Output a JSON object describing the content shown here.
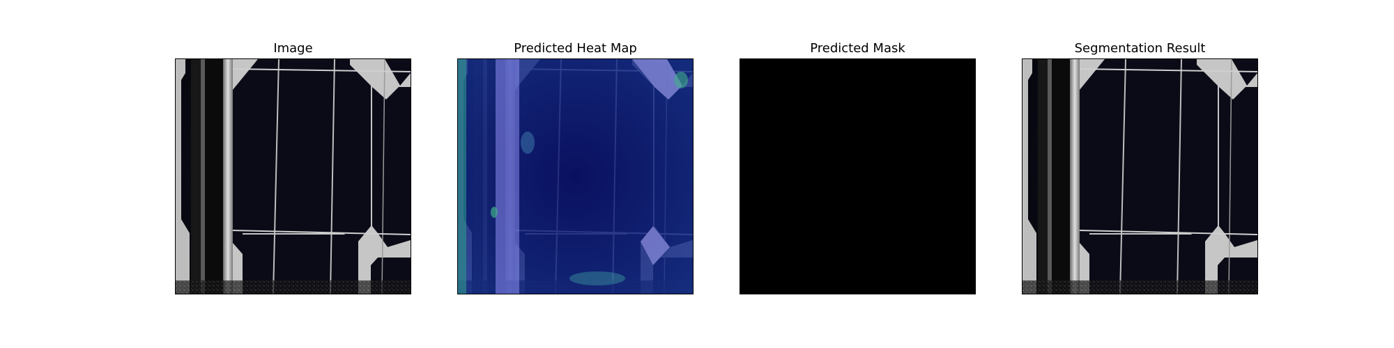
{
  "figure": {
    "panels": [
      {
        "title": "Image",
        "content": "solar-cell-photo"
      },
      {
        "title": "Predicted Heat Map",
        "content": "solar-cell-heatmap-overlay"
      },
      {
        "title": "Predicted Mask",
        "content": "empty-mask"
      },
      {
        "title": "Segmentation Result",
        "content": "solar-cell-photo"
      }
    ],
    "colors": {
      "background": "#ffffff",
      "cell_dark": "#0a0a1a",
      "metal_light": "#c8c8c8",
      "heatmap_base": "#0a1a8c",
      "heatmap_hot": "#2f9a8a",
      "mask": "#000000"
    }
  }
}
